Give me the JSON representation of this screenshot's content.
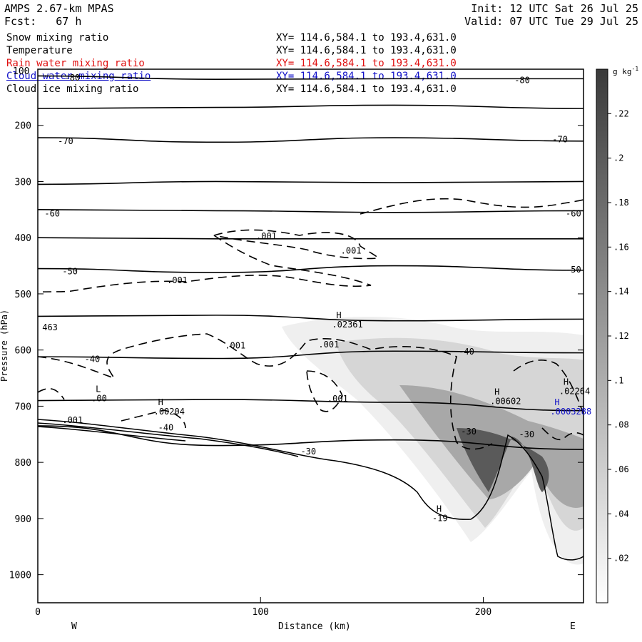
{
  "header": {
    "model": "AMPS 2.67-km MPAS",
    "fcst": "Fcst:   67 h",
    "init": "Init: 12 UTC Sat 26 Jul 25",
    "valid": "Valid: 07 UTC Tue 29 Jul 25"
  },
  "fields": [
    {
      "name": "Snow mixing ratio",
      "xy": "XY= 114.6,584.1 to 193.4,631.0",
      "color": "#000000"
    },
    {
      "name": "Temperature",
      "xy": "XY= 114.6,584.1 to 193.4,631.0",
      "color": "#000000"
    },
    {
      "name": "Rain water mixing ratio",
      "xy": "XY= 114.6,584.1 to 193.4,631.0",
      "color": "#e01010"
    },
    {
      "name": "Cloud water mixing ratio",
      "xy": "XY= 114.6,584.1 to 193.4,631.0",
      "color": "#1010c8"
    },
    {
      "name": "Cloud ice mixing ratio",
      "xy": "XY= 114.6,584.1 to 193.4,631.0",
      "color": "#000000"
    }
  ],
  "chart_data": {
    "type": "heatmap",
    "title": "AMPS 2.67-km MPAS",
    "xlabel": "Distance (km)",
    "ylabel": "Pressure (hPa)",
    "xlim": [
      0,
      245
    ],
    "ylim": [
      1050,
      100
    ],
    "x_ticks": [
      "0",
      "100",
      "200"
    ],
    "y_ticks": [
      "200",
      "300",
      "400",
      "500",
      "600",
      "700",
      "800",
      "900",
      "1000"
    ],
    "y_top_label": "100",
    "x_end_labels": {
      "left": "W",
      "right": "E"
    },
    "colorbar": {
      "unit": "g kg",
      "unit_superscript": "-1",
      "ticks": [
        ".02",
        ".04",
        ".06",
        ".08",
        ".1",
        ".12",
        ".14",
        ".16",
        ".18",
        ".2",
        ".22"
      ],
      "range": [
        0,
        0.24
      ],
      "color_low": "#ffffff",
      "color_high": "#3a3a3a"
    },
    "temperature_contours": [
      {
        "label": "-80",
        "p": [
          112,
          118,
          117,
          117
        ]
      },
      {
        "label": "",
        "p": [
          170,
          168,
          164,
          170
        ]
      },
      {
        "label": "-70",
        "p": [
          222,
          230,
          222,
          228
        ]
      },
      {
        "label": "",
        "p": [
          305,
          300,
          302,
          300
        ]
      },
      {
        "label": "-60",
        "p": [
          350,
          352,
          355,
          352
        ]
      },
      {
        "label": "",
        "p": [
          400,
          402,
          402,
          402
        ]
      },
      {
        "label": "-50",
        "p": [
          455,
          462,
          450,
          458
        ]
      },
      {
        "label": "",
        "p": [
          540,
          538,
          548,
          545
        ]
      },
      {
        "label": "-40",
        "p": [
          612,
          615,
          602,
          605
        ]
      },
      {
        "label": "",
        "p": [
          690,
          688,
          693,
          708
        ]
      },
      {
        "label": "-30",
        "p": [
          735,
          770,
          760,
          777
        ]
      }
    ],
    "contour_labels": [
      {
        "text": "-80",
        "x": 12,
        "p": 115,
        "color": "#000000"
      },
      {
        "text": "-80",
        "x": 214,
        "p": 120,
        "color": "#000000"
      },
      {
        "text": "-70",
        "x": 9,
        "p": 228,
        "color": "#000000"
      },
      {
        "text": "-70",
        "x": 231,
        "p": 225,
        "color": "#000000"
      },
      {
        "text": "-60",
        "x": 3,
        "p": 357,
        "color": "#000000"
      },
      {
        "text": "-60",
        "x": 237,
        "p": 357,
        "color": "#000000"
      },
      {
        "text": "-50",
        "x": 11,
        "p": 460,
        "color": "#000000"
      },
      {
        "text": "-50",
        "x": 237,
        "p": 457,
        "color": "#000000"
      },
      {
        "text": "-40",
        "x": 21,
        "p": 616,
        "color": "#000000"
      },
      {
        "text": "-40",
        "x": 189,
        "p": 603,
        "color": "#000000"
      },
      {
        "text": "-40",
        "x": 54,
        "p": 738,
        "color": "#000000"
      },
      {
        "text": "-30",
        "x": 118,
        "p": 781,
        "color": "#000000"
      },
      {
        "text": "-30",
        "x": 190,
        "p": 745,
        "color": "#000000"
      },
      {
        "text": "-30",
        "x": 216,
        "p": 750,
        "color": "#000000"
      },
      {
        "text": ".001",
        "x": 98,
        "p": 397,
        "color": "#000000"
      },
      {
        "text": ".001",
        "x": 136,
        "p": 423,
        "color": "#000000"
      },
      {
        "text": ".001",
        "x": 58,
        "p": 476,
        "color": "#000000"
      },
      {
        "text": ".001",
        "x": 84,
        "p": 592,
        "color": "#000000"
      },
      {
        "text": ".001",
        "x": 126,
        "p": 590,
        "color": "#000000"
      },
      {
        "text": ".001",
        "x": 130,
        "p": 687,
        "color": "#000000"
      },
      {
        "text": ".001",
        "x": 11,
        "p": 725,
        "color": "#000000"
      },
      {
        "text": "463",
        "x": 2,
        "p": 560,
        "color": "#000000"
      }
    ],
    "extrema": [
      {
        "kind": "H",
        "value": ".02361",
        "x": 134,
        "p": 543,
        "color": "#000000"
      },
      {
        "kind": "L",
        "value": ".00",
        "x": 26,
        "p": 675,
        "color": "#000000"
      },
      {
        "kind": "H",
        "value": ".00204",
        "x": 54,
        "p": 698,
        "color": "#000000"
      },
      {
        "kind": "H",
        "value": ".00602",
        "x": 205,
        "p": 680,
        "color": "#000000"
      },
      {
        "kind": "H",
        "value": ".02264",
        "x": 236,
        "p": 662,
        "color": "#000000"
      },
      {
        "kind": "H",
        "value": ".0003288",
        "x": 232,
        "p": 698,
        "color": "#1010c8"
      },
      {
        "kind": "H",
        "value": "-19",
        "x": 179,
        "p": 888,
        "color": "#000000"
      }
    ]
  }
}
